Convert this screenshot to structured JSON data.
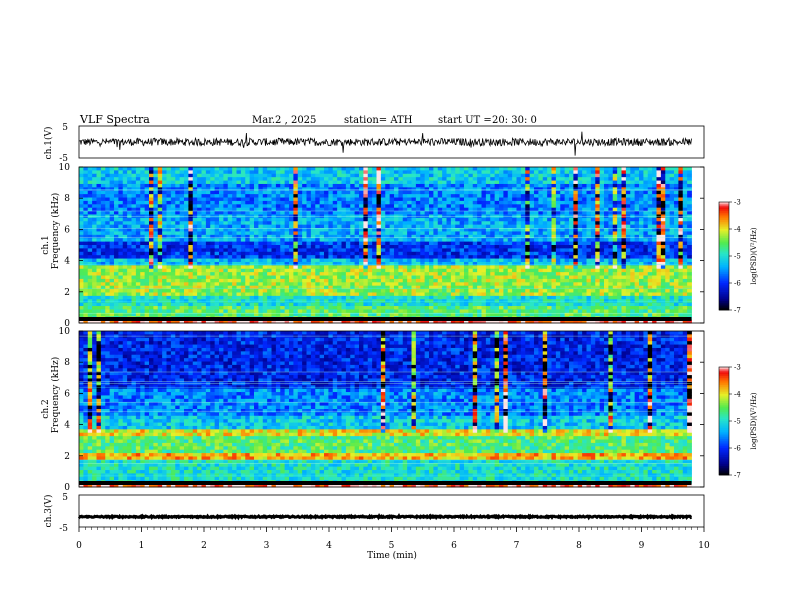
{
  "header": {
    "title": "VLF  Spectra",
    "date": "Mar.2  , 2025",
    "station": "station= ATH",
    "start_ut_label": "start  UT  =",
    "start_ut_value": "20: 30: 0"
  },
  "colors": {
    "spectrum_low": "#000000",
    "spectrum_mid": "#1f40ff",
    "spectrum_high": "#ff1a00",
    "waveform": "#000000"
  },
  "chart_data": [
    {
      "type": "line",
      "id": "ch1-waveform",
      "ylabel": "ch.1(V)",
      "ylim": [
        -5,
        5
      ],
      "yticks": [
        5,
        -5
      ],
      "xlim": [
        0,
        10
      ],
      "series": [
        {
          "values_description_free": true,
          "baseline": 0.0,
          "amplitude": 1.2
        }
      ]
    },
    {
      "type": "heatmap",
      "id": "ch1-spectrogram",
      "ylabel": [
        "ch.1",
        "Frequency  (kHz)"
      ],
      "ylim": [
        0,
        10
      ],
      "yticks": [
        "0",
        "2",
        "4",
        "6",
        "8",
        "10"
      ],
      "xlim": [
        0,
        9.8
      ],
      "bands_khz": [
        {
          "from": 0.0,
          "to": 0.3,
          "level": -3.2
        },
        {
          "from": 0.3,
          "to": 1.0,
          "level": -4.6
        },
        {
          "from": 1.0,
          "to": 1.8,
          "level": -5.0
        },
        {
          "from": 1.8,
          "to": 3.8,
          "level": -4.3
        },
        {
          "from": 3.8,
          "to": 4.2,
          "level": -5.3
        },
        {
          "from": 4.2,
          "to": 5.2,
          "level": -6.0
        },
        {
          "from": 5.2,
          "to": 7.0,
          "level": -5.4
        },
        {
          "from": 7.0,
          "to": 9.0,
          "level": -5.6
        },
        {
          "from": 9.0,
          "to": 10.0,
          "level": -5.2
        }
      ]
    },
    {
      "type": "heatmap",
      "id": "ch2-spectrogram",
      "ylabel": [
        "ch.2",
        "Frequency  (kHz)"
      ],
      "ylim": [
        0,
        10
      ],
      "yticks": [
        "0",
        "2",
        "4",
        "6",
        "8",
        "10"
      ],
      "xlim": [
        0,
        9.8
      ],
      "bands_khz": [
        {
          "from": 0.0,
          "to": 0.3,
          "level": -3.2
        },
        {
          "from": 0.3,
          "to": 1.8,
          "level": -5.0
        },
        {
          "from": 1.8,
          "to": 2.2,
          "level": -3.8
        },
        {
          "from": 2.2,
          "to": 3.2,
          "level": -4.6
        },
        {
          "from": 3.2,
          "to": 3.7,
          "level": -4.0
        },
        {
          "from": 3.7,
          "to": 4.6,
          "level": -5.2
        },
        {
          "from": 4.6,
          "to": 6.2,
          "level": -5.6
        },
        {
          "from": 6.2,
          "to": 10.0,
          "level": -6.1
        }
      ]
    },
    {
      "type": "line",
      "id": "ch3-waveform",
      "ylabel": "ch.3(V)",
      "ylim": [
        -5,
        5
      ],
      "yticks": [
        "5",
        "-5"
      ],
      "xlim": [
        0,
        10
      ],
      "xlabel": "Time  (min)",
      "xticks": [
        "0",
        "1",
        "2",
        "3",
        "4",
        "5",
        "6",
        "7",
        "8",
        "9",
        "10"
      ],
      "series": [
        {
          "baseline": -1.8,
          "amplitude": 0.2
        }
      ]
    }
  ],
  "colorbar_ch1": {
    "label": "log(PSD)(V²/Hz)",
    "ticks": [
      "-3",
      "-4",
      "-5",
      "-6",
      "-7"
    ],
    "range": [
      -7,
      -3
    ]
  },
  "colorbar_ch2": {
    "label": "log(PSD)(V²/Hz)",
    "ticks": [
      "-3",
      "-4",
      "-5",
      "-6",
      "-7"
    ],
    "range": [
      -7,
      -3
    ]
  }
}
